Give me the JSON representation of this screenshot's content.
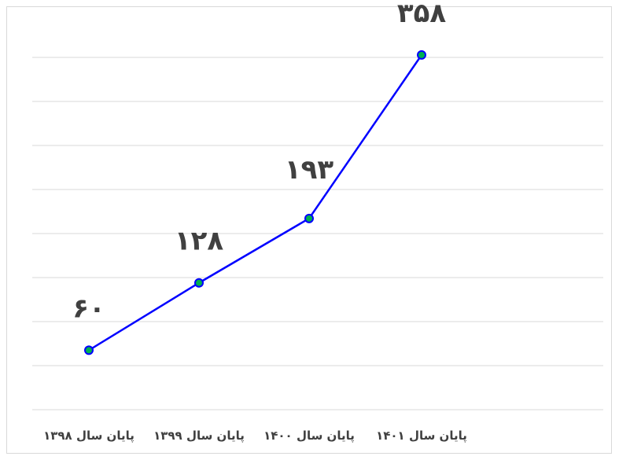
{
  "chart_data": {
    "type": "line",
    "categories": [
      "پایان سال ۱۳۹۸",
      "پایان سال ۱۳۹۹",
      "پایان سال ۱۴۰۰",
      "پایان سال ۱۴۰۱"
    ],
    "values": [
      60,
      128,
      193,
      358
    ],
    "value_labels": [
      "۶۰",
      "۱۲۸",
      "۱۹۳",
      "۳۵۸"
    ],
    "title": "",
    "xlabel": "",
    "ylabel": "",
    "ylim": [
      0,
      400
    ],
    "grid": true,
    "legend": "none",
    "colors": {
      "line": "#0000ff",
      "marker_fill": "#00b050",
      "grid": "#d9d9d9",
      "text": "#404040"
    }
  }
}
